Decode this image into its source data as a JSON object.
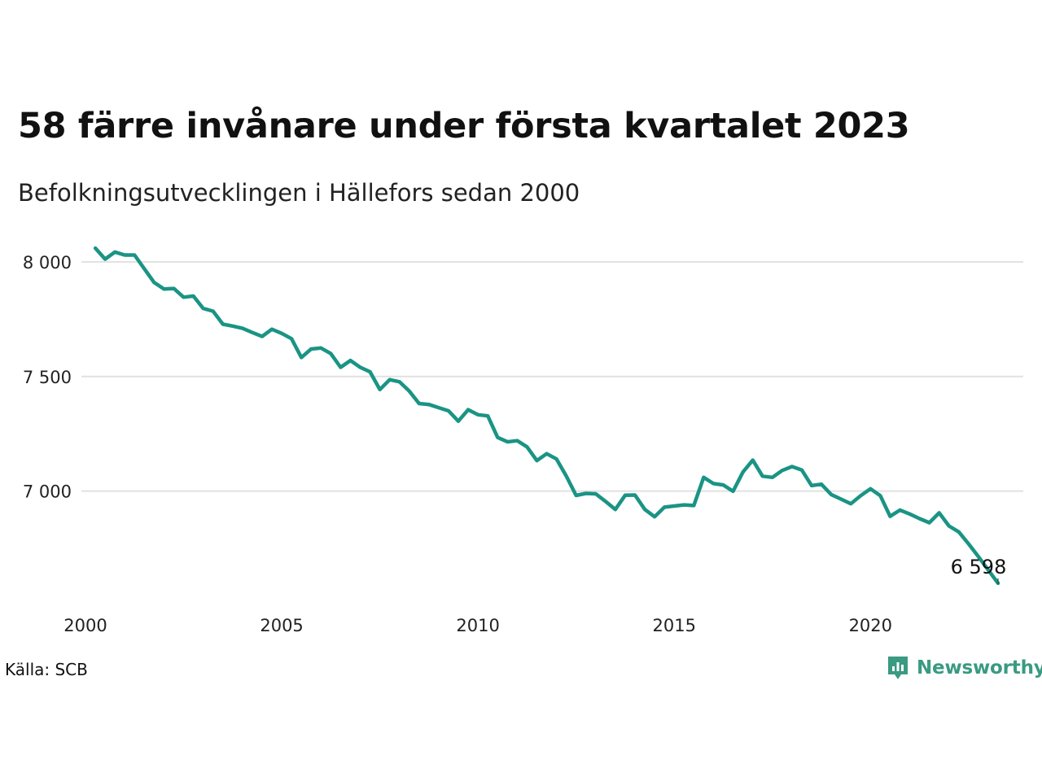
{
  "chart_data": {
    "type": "line",
    "title": "58 färre invånare under första kvartalet 2023",
    "subtitle": "Befolkningsutvecklingen i Hällefors sedan 2000",
    "xlabel": "",
    "ylabel": "",
    "xlim": [
      2000,
      2023.25
    ],
    "ylim": [
      6580,
      8060
    ],
    "x_ticks": [
      2000,
      2005,
      2010,
      2015,
      2020
    ],
    "x_tick_labels": [
      "2000",
      "2005",
      "2010",
      "2015",
      "2020"
    ],
    "y_ticks": [
      7000,
      7500,
      8000
    ],
    "y_tick_labels": [
      "7 000",
      "7 500",
      "8 000"
    ],
    "grid": "horizontal",
    "legend": "none",
    "line_color": "#1a9484",
    "series": [
      {
        "x": [
          2000.25,
          2000.5,
          2000.75,
          2001.0,
          2001.25,
          2001.5,
          2001.75,
          2002.0,
          2002.25,
          2002.5,
          2002.75,
          2003.0,
          2003.25,
          2003.5,
          2003.75,
          2004.0,
          2004.25,
          2004.5,
          2004.75,
          2005.0,
          2005.25,
          2005.5,
          2005.75,
          2006.0,
          2006.25,
          2006.5,
          2006.75,
          2007.0,
          2007.25,
          2007.5,
          2007.75,
          2008.0,
          2008.25,
          2008.5,
          2008.75,
          2009.0,
          2009.25,
          2009.5,
          2009.75,
          2010.0,
          2010.25,
          2010.5,
          2010.75,
          2011.0,
          2011.25,
          2011.5,
          2011.75,
          2012.0,
          2012.25,
          2012.5,
          2012.75,
          2013.0,
          2013.25,
          2013.5,
          2013.75,
          2014.0,
          2014.25,
          2014.5,
          2014.75,
          2015.0,
          2015.25,
          2015.5,
          2015.75,
          2016.0,
          2016.25,
          2016.5,
          2016.75,
          2017.0,
          2017.25,
          2017.5,
          2017.75,
          2018.0,
          2018.25,
          2018.5,
          2018.75,
          2019.0,
          2019.25,
          2019.5,
          2019.75,
          2020.0,
          2020.25,
          2020.5,
          2020.75,
          2021.0,
          2021.25,
          2021.5,
          2021.75,
          2022.0,
          2022.25,
          2022.5,
          2022.75,
          2023.0,
          2023.25
        ],
        "values": [
          8060,
          8012,
          8043,
          8030,
          8030,
          7970,
          7910,
          7882,
          7884,
          7846,
          7851,
          7797,
          7785,
          7728,
          7720,
          7710,
          7692,
          7675,
          7706,
          7688,
          7665,
          7583,
          7620,
          7624,
          7600,
          7540,
          7570,
          7540,
          7520,
          7443,
          7486,
          7477,
          7436,
          7382,
          7378,
          7364,
          7350,
          7305,
          7355,
          7333,
          7328,
          7234,
          7215,
          7220,
          7193,
          7133,
          7163,
          7140,
          7066,
          6981,
          6990,
          6988,
          6955,
          6920,
          6982,
          6983,
          6920,
          6888,
          6930,
          6935,
          6940,
          6937,
          7060,
          7033,
          7027,
          6999,
          7083,
          7135,
          7065,
          7060,
          7090,
          7107,
          7092,
          7024,
          7030,
          6985,
          6965,
          6945,
          6980,
          7010,
          6980,
          6890,
          6917,
          6900,
          6880,
          6862,
          6905,
          6848,
          6822,
          6770,
          6714,
          6656,
          6598
        ]
      }
    ],
    "annotations": [
      {
        "label": "6 598",
        "x": 2023.25,
        "y": 6598
      }
    ]
  },
  "source": "Källa: SCB",
  "logo": {
    "name": "Newsworthy",
    "icon": "newsworthy-logo-icon",
    "color": "#3a9a82"
  }
}
